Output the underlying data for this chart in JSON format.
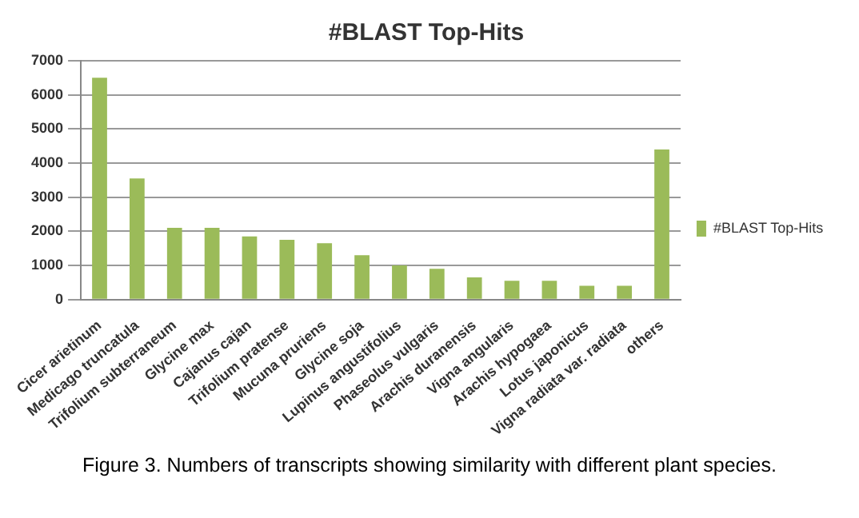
{
  "chart_data": {
    "type": "bar",
    "title": "#BLAST Top-Hits",
    "categories": [
      "Cicer arietinum",
      "Medicago truncatula",
      "Trifolium subterraneum",
      "Glycine max",
      "Cajanus cajan",
      "Trifolium pratense",
      "Mucuna pruriens",
      "Glycine soja",
      "Lupinus angustifolius",
      "Phaseolus vulgaris",
      "Arachis duranensis",
      "Vigna angularis",
      "Arachis hypogaea",
      "Lotus japonicus",
      "Vigna radiata var. radiata",
      "others"
    ],
    "series": [
      {
        "name": "#BLAST Top-Hits",
        "color": "#9bbb59",
        "values": [
          6500,
          3550,
          2100,
          2100,
          1850,
          1750,
          1650,
          1300,
          1000,
          900,
          650,
          550,
          550,
          400,
          400,
          4400
        ]
      }
    ],
    "ylim": [
      0,
      7000
    ],
    "yticks": [
      0,
      1000,
      2000,
      3000,
      4000,
      5000,
      6000,
      7000
    ],
    "grid": "y",
    "legend": "right",
    "annotations": [
      "Figure 3. Numbers of transcripts showing similarity with different plant species."
    ]
  }
}
